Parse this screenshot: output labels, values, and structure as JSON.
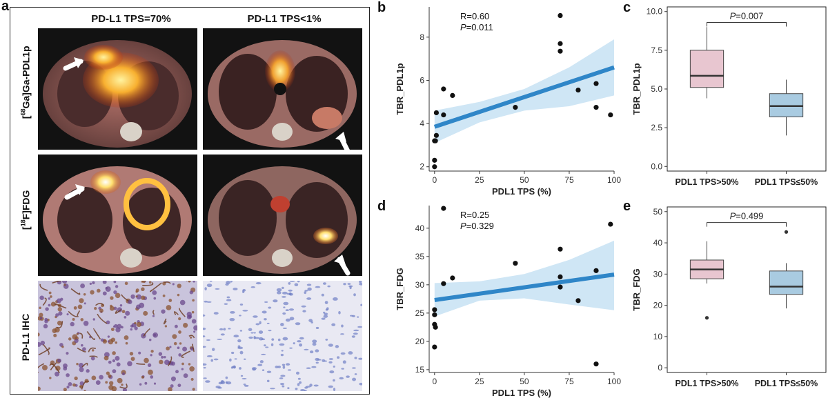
{
  "panel_a": {
    "letter": "a",
    "col_titles": [
      "PD-L1 TPS=70%",
      "PD-L1 TPS<1%"
    ],
    "row_labels": {
      "r1_sup": "68",
      "r1_main": "Ga]Ga-PDL1p",
      "r2_sup": "18",
      "r2_main": "F]FDG",
      "r3": "PD-L1 IHC"
    }
  },
  "chart_data": [
    {
      "panel": "b",
      "type": "scatter",
      "xlabel": "PDL1 TPS (%)",
      "ylabel": "TBR_PDL1p",
      "xlim": [
        -3,
        100
      ],
      "ylim": [
        1.8,
        9.4
      ],
      "xticks": [
        0,
        25,
        50,
        75,
        100
      ],
      "yticks": [
        2,
        4,
        6,
        8
      ],
      "annotation_r": "R=0.60",
      "annotation_p": "=0.011",
      "fit": {
        "x0": 0,
        "y0": 3.85,
        "x1": 100,
        "y1": 6.6
      },
      "band": {
        "upper": [
          [
            0,
            4.6
          ],
          [
            25,
            5.0
          ],
          [
            50,
            5.6
          ],
          [
            75,
            6.6
          ],
          [
            100,
            7.9
          ]
        ],
        "lower": [
          [
            0,
            3.1
          ],
          [
            25,
            4.05
          ],
          [
            50,
            4.6
          ],
          [
            75,
            4.8
          ],
          [
            100,
            5.3
          ]
        ]
      },
      "points": [
        [
          0,
          2.0
        ],
        [
          0,
          2.3
        ],
        [
          0,
          3.2
        ],
        [
          0.5,
          3.2
        ],
        [
          1,
          3.45
        ],
        [
          1,
          4.5
        ],
        [
          5,
          4.4
        ],
        [
          5,
          5.6
        ],
        [
          10,
          5.3
        ],
        [
          45,
          4.75
        ],
        [
          70,
          9.0
        ],
        [
          70,
          7.7
        ],
        [
          70,
          7.35
        ],
        [
          80,
          5.55
        ],
        [
          90,
          5.85
        ],
        [
          90,
          4.75
        ],
        [
          98,
          4.4
        ]
      ]
    },
    {
      "panel": "c",
      "type": "box",
      "ylabel": "TBR_PDL1p",
      "ylim": [
        -0.3,
        10.3
      ],
      "yticks": [
        "0.0",
        "2.5",
        "5.0",
        "7.5",
        "10.0"
      ],
      "categories": [
        "PDL1 TPS>50%",
        "PDL1 TPS≤50%"
      ],
      "boxes": [
        {
          "min": 4.4,
          "q1": 5.1,
          "median": 5.85,
          "q3": 7.5,
          "max": 9.0,
          "outliers": [],
          "color": "#e8c6d0"
        },
        {
          "min": 2.0,
          "q1": 3.2,
          "median": 3.9,
          "q3": 4.7,
          "max": 5.6,
          "outliers": [],
          "color": "#a9cbe1"
        }
      ],
      "p_label": "=0.007",
      "bracket_y": 9.3
    },
    {
      "panel": "d",
      "type": "scatter",
      "xlabel": "PDL1 TPS (%)",
      "ylabel": "TBR_FDG",
      "xlim": [
        -3,
        100
      ],
      "ylim": [
        14.5,
        44
      ],
      "xticks": [
        0,
        25,
        50,
        75,
        100
      ],
      "yticks": [
        15,
        20,
        25,
        30,
        35,
        40
      ],
      "annotation_r": "R=0.25",
      "annotation_p": "=0.329",
      "fit": {
        "x0": 0,
        "y0": 27.3,
        "x1": 100,
        "y1": 31.8
      },
      "band": {
        "upper": [
          [
            0,
            30.3
          ],
          [
            25,
            30.6
          ],
          [
            50,
            31.9
          ],
          [
            75,
            34.4
          ],
          [
            100,
            37.8
          ]
        ],
        "lower": [
          [
            0,
            24.4
          ],
          [
            25,
            27.2
          ],
          [
            50,
            27.6
          ],
          [
            75,
            26.5
          ],
          [
            100,
            25.5
          ]
        ]
      },
      "points": [
        [
          5,
          43.5
        ],
        [
          98,
          40.7
        ],
        [
          70,
          36.3
        ],
        [
          45,
          33.8
        ],
        [
          90,
          32.5
        ],
        [
          10,
          31.2
        ],
        [
          5,
          30.2
        ],
        [
          70,
          31.4
        ],
        [
          70,
          29.6
        ],
        [
          80,
          27.2
        ],
        [
          0,
          25.6
        ],
        [
          0,
          24.7
        ],
        [
          0,
          23.0
        ],
        [
          0.5,
          22.5
        ],
        [
          0,
          19.0
        ],
        [
          90,
          16.0
        ]
      ]
    },
    {
      "panel": "e",
      "type": "box",
      "ylabel": "TBR_FDG",
      "ylim": [
        -1.5,
        51.5
      ],
      "yticks": [
        "0",
        "10",
        "20",
        "30",
        "40",
        "50"
      ],
      "categories": [
        "PDL1 TPS>50%",
        "PDL1 TPS≤50%"
      ],
      "boxes": [
        {
          "min": 27.0,
          "q1": 28.5,
          "median": 31.5,
          "q3": 34.5,
          "max": 40.5,
          "outliers": [
            16.0
          ],
          "color": "#e8c6d0"
        },
        {
          "min": 19.0,
          "q1": 23.5,
          "median": 26.0,
          "q3": 31.0,
          "max": 33.5,
          "outliers": [
            43.5
          ],
          "color": "#a9cbe1"
        }
      ],
      "p_label": "=0.499",
      "bracket_y": 46.5
    }
  ],
  "letters": {
    "b": "b",
    "c": "c",
    "d": "d",
    "e": "e"
  },
  "p_italic": "P",
  "colors": {
    "fit": "#2f86c8",
    "band": "#cfe6f5",
    "point": "#111111",
    "box_pink": "#e8c6d0",
    "box_blue": "#a9cbe1"
  }
}
